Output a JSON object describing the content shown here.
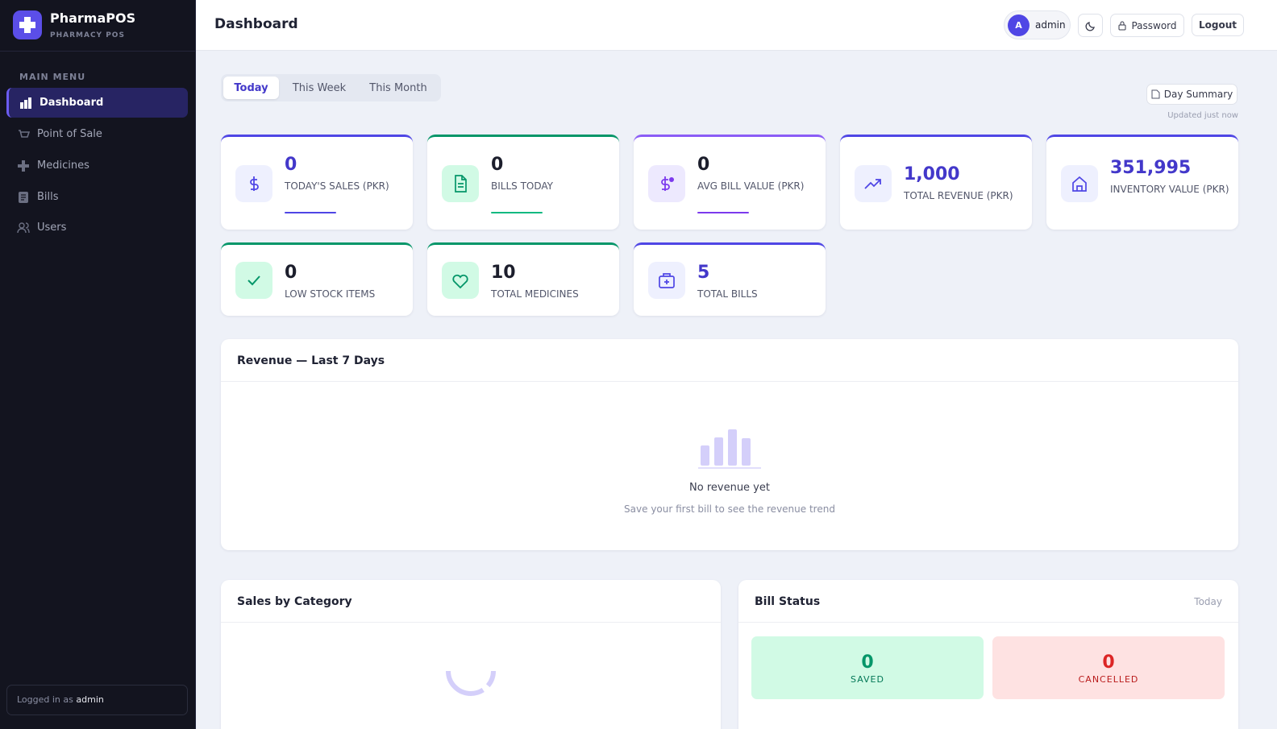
{
  "sidebar": {
    "brand": {
      "name": "PharmaPOS",
      "tagline": "PHARMACY POS"
    },
    "menu_heading": "MAIN MENU",
    "nav": [
      "Dashboard",
      "Point of Sale",
      "Medicines",
      "Bills",
      "Users"
    ],
    "footer": {
      "prefix": "Logged in as",
      "user": "admin"
    }
  },
  "header": {
    "title": "Dashboard",
    "user": {
      "initial": "A",
      "name": "admin"
    },
    "buttons": [
      "Password",
      "Logout"
    ]
  },
  "tabs": [
    "Today",
    "This Week",
    "This Month"
  ],
  "summary": {
    "button": "Day Summary",
    "updated": "Updated just now"
  },
  "stats": [
    {
      "value": "0",
      "label": "TODAY'S SALES (PKR)"
    },
    {
      "value": "0",
      "label": "BILLS TODAY"
    },
    {
      "value": "0",
      "label": "AVG BILL VALUE (PKR)"
    },
    {
      "value": "1,000",
      "label": "TOTAL REVENUE (PKR)"
    },
    {
      "value": "351,995",
      "label": "INVENTORY VALUE (PKR)"
    },
    {
      "value": "0",
      "label": "LOW STOCK ITEMS"
    },
    {
      "value": "10",
      "label": "TOTAL MEDICINES"
    },
    {
      "value": "5",
      "label": "TOTAL BILLS"
    }
  ],
  "revenue": {
    "title": "Revenue — Last 7 Days",
    "empty_title": "No revenue yet",
    "empty_text": "Save your first bill to see the revenue trend"
  },
  "sales_by_category": {
    "title": "Sales by Category"
  },
  "bill_status": {
    "title": "Bill Status",
    "period": "Today",
    "saved": {
      "value": "0",
      "label": "SAVED"
    },
    "cancelled": {
      "value": "0",
      "label": "CANCELLED"
    }
  }
}
